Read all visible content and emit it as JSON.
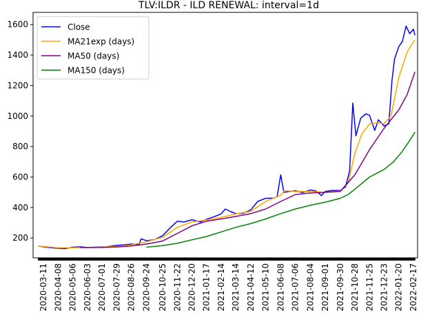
{
  "chart_data": {
    "type": "line",
    "title": "TLV:ILDR - ILD RENEWAL: interval=1d",
    "xlabel": "",
    "ylabel": "",
    "ylim": [
      70,
      1680
    ],
    "xlim": [
      "2020-02-20",
      "2022-02-25"
    ],
    "grid": false,
    "legend_position": "top-left",
    "y_ticks": [
      200,
      400,
      600,
      800,
      1000,
      1200,
      1400,
      1600
    ],
    "x_tick_labels": [
      "2020-03-11",
      "2020-04-08",
      "2020-05-06",
      "2020-06-03",
      "2020-07-01",
      "2020-07-29",
      "2020-08-26",
      "2020-09-24",
      "2020-10-25",
      "2020-11-22",
      "2020-12-20",
      "2021-01-17",
      "2021-02-14",
      "2021-03-14",
      "2021-04-12",
      "2021-05-10",
      "2021-06-08",
      "2021-07-06",
      "2021-08-04",
      "2021-09-01",
      "2021-09-30",
      "2021-10-28",
      "2021-11-25",
      "2021-12-23",
      "2022-01-20",
      "2022-02-17"
    ],
    "series": [
      {
        "name": "Close",
        "color": "#0000ff",
        "points": [
          [
            "2020-03-01",
            148
          ],
          [
            "2020-03-15",
            140
          ],
          [
            "2020-04-01",
            134
          ],
          [
            "2020-04-20",
            130
          ],
          [
            "2020-05-06",
            140
          ],
          [
            "2020-05-20",
            142
          ],
          [
            "2020-06-03",
            138
          ],
          [
            "2020-06-20",
            140
          ],
          [
            "2020-07-10",
            142
          ],
          [
            "2020-07-25",
            150
          ],
          [
            "2020-08-10",
            155
          ],
          [
            "2020-08-26",
            160
          ],
          [
            "2020-09-10",
            158
          ],
          [
            "2020-09-14",
            195
          ],
          [
            "2020-09-24",
            182
          ],
          [
            "2020-10-10",
            190
          ],
          [
            "2020-10-25",
            215
          ],
          [
            "2020-11-08",
            265
          ],
          [
            "2020-11-22",
            310
          ],
          [
            "2020-12-05",
            305
          ],
          [
            "2020-12-20",
            320
          ],
          [
            "2021-01-05",
            305
          ],
          [
            "2021-01-17",
            322
          ],
          [
            "2021-02-01",
            340
          ],
          [
            "2021-02-14",
            358
          ],
          [
            "2021-02-22",
            390
          ],
          [
            "2021-03-05",
            372
          ],
          [
            "2021-03-14",
            360
          ],
          [
            "2021-03-28",
            362
          ],
          [
            "2021-04-12",
            385
          ],
          [
            "2021-04-25",
            440
          ],
          [
            "2021-05-10",
            460
          ],
          [
            "2021-05-25",
            462
          ],
          [
            "2021-06-01",
            470
          ],
          [
            "2021-06-08",
            615
          ],
          [
            "2021-06-14",
            500
          ],
          [
            "2021-06-25",
            505
          ],
          [
            "2021-07-06",
            510
          ],
          [
            "2021-07-20",
            498
          ],
          [
            "2021-08-04",
            515
          ],
          [
            "2021-08-15",
            508
          ],
          [
            "2021-08-25",
            478
          ],
          [
            "2021-09-01",
            505
          ],
          [
            "2021-09-15",
            512
          ],
          [
            "2021-09-30",
            512
          ],
          [
            "2021-10-10",
            535
          ],
          [
            "2021-10-18",
            640
          ],
          [
            "2021-10-24",
            1085
          ],
          [
            "2021-10-30",
            870
          ],
          [
            "2021-11-08",
            985
          ],
          [
            "2021-11-18",
            1015
          ],
          [
            "2021-11-25",
            1005
          ],
          [
            "2021-12-05",
            905
          ],
          [
            "2021-12-12",
            975
          ],
          [
            "2021-12-23",
            935
          ],
          [
            "2022-01-01",
            950
          ],
          [
            "2022-01-07",
            1235
          ],
          [
            "2022-01-12",
            1375
          ],
          [
            "2022-01-20",
            1455
          ],
          [
            "2022-01-27",
            1490
          ],
          [
            "2022-02-03",
            1590
          ],
          [
            "2022-02-10",
            1540
          ],
          [
            "2022-02-17",
            1570
          ],
          [
            "2022-02-20",
            1530
          ]
        ]
      },
      {
        "name": "MA21exp (days)",
        "color": "#ffa500",
        "points": [
          [
            "2020-03-01",
            148
          ],
          [
            "2020-04-08",
            136
          ],
          [
            "2020-05-06",
            136
          ],
          [
            "2020-06-03",
            138
          ],
          [
            "2020-07-01",
            140
          ],
          [
            "2020-07-29",
            145
          ],
          [
            "2020-08-26",
            155
          ],
          [
            "2020-09-24",
            175
          ],
          [
            "2020-10-25",
            205
          ],
          [
            "2020-11-22",
            270
          ],
          [
            "2020-12-20",
            305
          ],
          [
            "2021-01-17",
            318
          ],
          [
            "2021-02-14",
            335
          ],
          [
            "2021-03-14",
            358
          ],
          [
            "2021-04-12",
            375
          ],
          [
            "2021-05-10",
            440
          ],
          [
            "2021-06-08",
            480
          ],
          [
            "2021-06-15",
            510
          ],
          [
            "2021-07-06",
            505
          ],
          [
            "2021-08-04",
            505
          ],
          [
            "2021-09-01",
            500
          ],
          [
            "2021-09-30",
            508
          ],
          [
            "2021-10-15",
            560
          ],
          [
            "2021-10-28",
            755
          ],
          [
            "2021-11-10",
            880
          ],
          [
            "2021-11-25",
            950
          ],
          [
            "2021-12-10",
            955
          ],
          [
            "2021-12-23",
            950
          ],
          [
            "2022-01-05",
            1000
          ],
          [
            "2022-01-20",
            1250
          ],
          [
            "2022-02-05",
            1420
          ],
          [
            "2022-02-20",
            1500
          ]
        ]
      },
      {
        "name": "MA50 (days)",
        "color": "#800080",
        "points": [
          [
            "2020-05-20",
            138
          ],
          [
            "2020-06-03",
            137
          ],
          [
            "2020-07-01",
            138
          ],
          [
            "2020-07-29",
            141
          ],
          [
            "2020-08-26",
            148
          ],
          [
            "2020-09-24",
            160
          ],
          [
            "2020-10-25",
            180
          ],
          [
            "2020-11-22",
            230
          ],
          [
            "2020-12-20",
            280
          ],
          [
            "2021-01-17",
            310
          ],
          [
            "2021-02-14",
            325
          ],
          [
            "2021-03-14",
            342
          ],
          [
            "2021-04-12",
            360
          ],
          [
            "2021-05-10",
            390
          ],
          [
            "2021-06-08",
            440
          ],
          [
            "2021-07-06",
            485
          ],
          [
            "2021-08-04",
            495
          ],
          [
            "2021-09-01",
            500
          ],
          [
            "2021-09-30",
            505
          ],
          [
            "2021-10-28",
            615
          ],
          [
            "2021-11-25",
            780
          ],
          [
            "2021-12-23",
            920
          ],
          [
            "2022-01-20",
            1040
          ],
          [
            "2022-02-05",
            1140
          ],
          [
            "2022-02-20",
            1290
          ]
        ]
      },
      {
        "name": "MA150 (days)",
        "color": "#008000",
        "points": [
          [
            "2020-09-24",
            140
          ],
          [
            "2020-10-25",
            150
          ],
          [
            "2020-11-22",
            165
          ],
          [
            "2020-12-20",
            188
          ],
          [
            "2021-01-17",
            210
          ],
          [
            "2021-02-14",
            240
          ],
          [
            "2021-03-14",
            270
          ],
          [
            "2021-04-12",
            295
          ],
          [
            "2021-05-10",
            325
          ],
          [
            "2021-06-08",
            360
          ],
          [
            "2021-07-06",
            390
          ],
          [
            "2021-08-04",
            415
          ],
          [
            "2021-09-01",
            435
          ],
          [
            "2021-09-30",
            460
          ],
          [
            "2021-10-15",
            485
          ],
          [
            "2021-10-28",
            520
          ],
          [
            "2021-11-25",
            600
          ],
          [
            "2021-12-23",
            650
          ],
          [
            "2022-01-10",
            700
          ],
          [
            "2022-01-25",
            760
          ],
          [
            "2022-02-10",
            840
          ],
          [
            "2022-02-20",
            895
          ]
        ]
      }
    ]
  }
}
